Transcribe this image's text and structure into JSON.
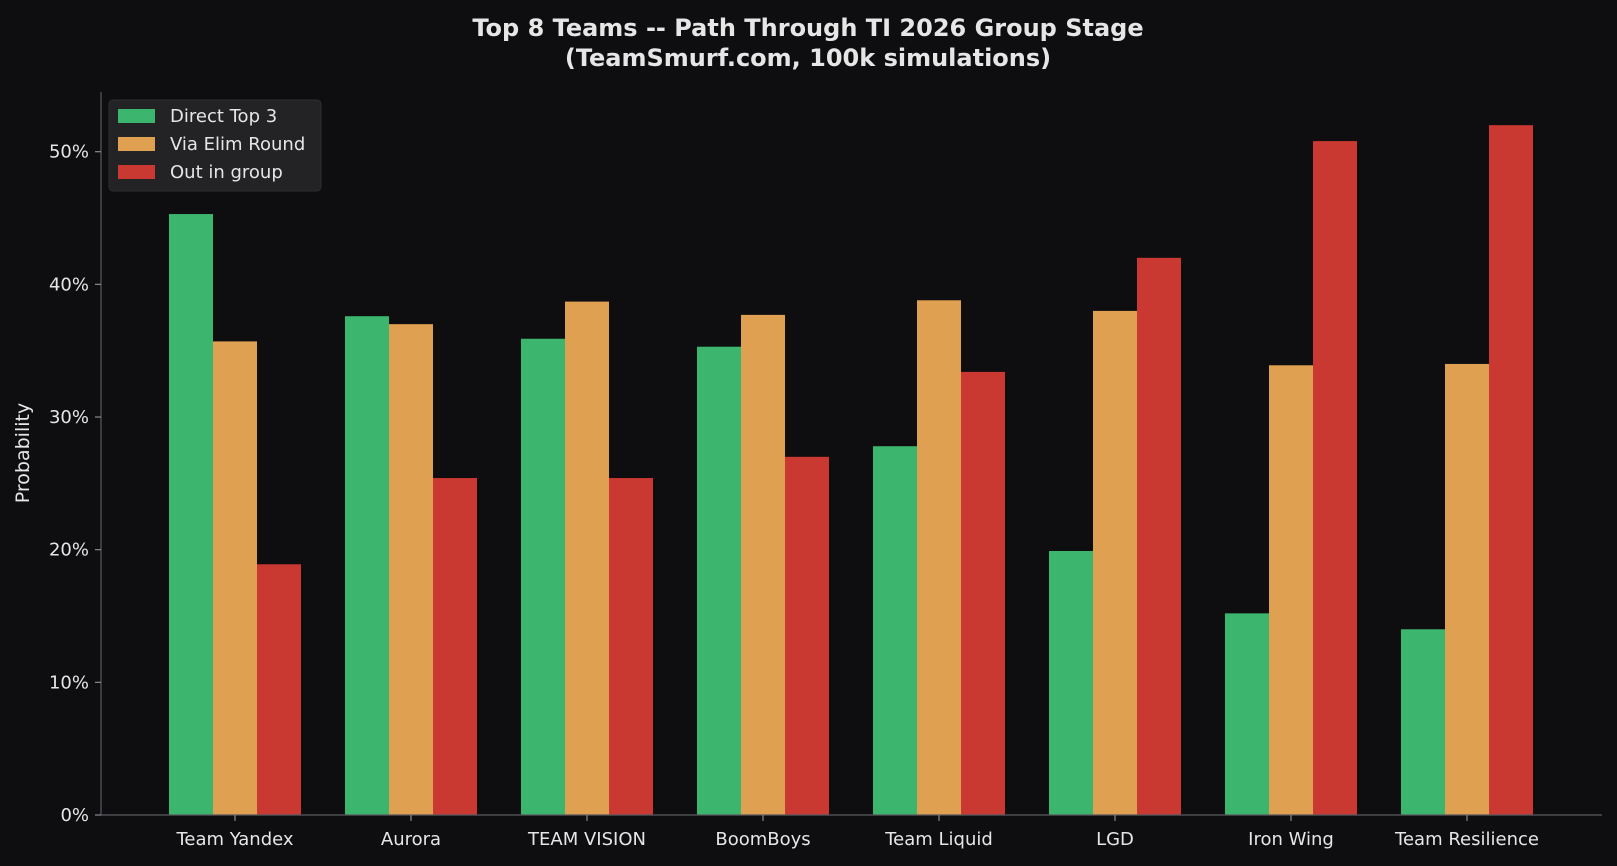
{
  "chart_data": {
    "type": "bar",
    "title": "Top 8 Teams -- Path Through TI 2026 Group Stage",
    "subtitle": "(TeamSmurf.com, 100k simulations)",
    "xlabel": "",
    "ylabel": "Probability",
    "ylim": [
      0,
      0.545
    ],
    "yticks": [
      0,
      0.1,
      0.2,
      0.3,
      0.4,
      0.5
    ],
    "ytick_labels": [
      "0%",
      "10%",
      "20%",
      "30%",
      "40%",
      "50%"
    ],
    "grid": false,
    "legend_position": "top-left",
    "categories": [
      "Team Yandex",
      "Aurora",
      "TEAM VISION",
      "BoomBoys",
      "Team Liquid",
      "LGD",
      "Iron Wing",
      "Team Resilience"
    ],
    "series": [
      {
        "name": "Direct Top 3",
        "color": "#3cb66e",
        "values": [
          0.453,
          0.376,
          0.359,
          0.353,
          0.278,
          0.199,
          0.152,
          0.14
        ]
      },
      {
        "name": "Via Elim Round",
        "color": "#dfa051",
        "values": [
          0.357,
          0.37,
          0.387,
          0.377,
          0.388,
          0.38,
          0.339,
          0.34
        ]
      },
      {
        "name": "Out in group",
        "color": "#c93831",
        "values": [
          0.189,
          0.254,
          0.254,
          0.27,
          0.334,
          0.42,
          0.508,
          0.52
        ]
      }
    ]
  }
}
